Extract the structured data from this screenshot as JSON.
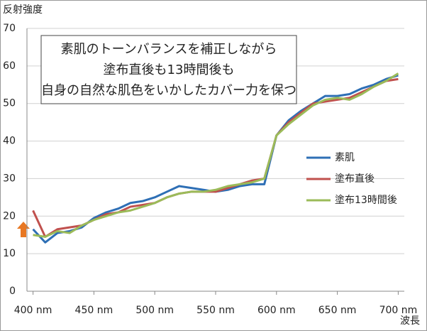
{
  "chart_data": {
    "type": "line",
    "y_axis_label": "反射強度",
    "x_axis_label": "波長",
    "annotation": [
      "素肌のトーンバランスを補正しながら",
      "塗布直後も13時間後も",
      "自身の自然な肌色をいかしたカバー力を保つ"
    ],
    "x": [
      400,
      410,
      420,
      430,
      440,
      450,
      460,
      470,
      480,
      490,
      500,
      510,
      520,
      530,
      540,
      550,
      560,
      570,
      580,
      590,
      600,
      610,
      620,
      630,
      640,
      650,
      660,
      670,
      680,
      690,
      700
    ],
    "series": [
      {
        "name": "素肌",
        "color": "#2e6fb5",
        "values": [
          16.5,
          13,
          15.5,
          16,
          17,
          19.5,
          21,
          22,
          23.5,
          24,
          25,
          26.5,
          28,
          27.5,
          27,
          26.5,
          27,
          28,
          28.5,
          28.5,
          41.5,
          45.5,
          48,
          50,
          52,
          52,
          52.5,
          54,
          55,
          56.5,
          57.5
        ]
      },
      {
        "name": "塗布直後",
        "color": "#c0504d",
        "values": [
          21.5,
          14.5,
          16.5,
          17,
          17.5,
          19,
          20.5,
          21,
          22.5,
          23,
          23.5,
          25,
          26,
          26.5,
          26.5,
          26.5,
          27.5,
          28.5,
          29.5,
          30,
          41.5,
          45,
          47.5,
          50,
          50.5,
          51,
          51.5,
          53,
          54.5,
          56,
          56.5
        ]
      },
      {
        "name": "塗布13時間後",
        "color": "#9bbb59",
        "values": [
          15,
          14.5,
          16,
          15.5,
          17.5,
          19,
          20,
          21,
          21.5,
          22.5,
          23.5,
          25,
          26,
          26.5,
          26.5,
          27,
          28,
          28.5,
          29,
          30,
          41.5,
          44.5,
          47,
          49.5,
          51,
          51.5,
          51,
          52.5,
          54.5,
          56,
          58
        ]
      }
    ],
    "xlim": [
      395,
      705
    ],
    "xticks": [
      {
        "value": 400,
        "label": "400 nm"
      },
      {
        "value": 450,
        "label": "450 nm"
      },
      {
        "value": 500,
        "label": "500 nm"
      },
      {
        "value": 550,
        "label": "550 nm"
      },
      {
        "value": 600,
        "label": "600 nm"
      },
      {
        "value": 650,
        "label": "650 nm"
      },
      {
        "value": 700,
        "label": "700 nm"
      }
    ],
    "ylim": [
      0,
      70
    ],
    "yticks": [
      0,
      10,
      20,
      30,
      40,
      50,
      60,
      70
    ],
    "grid": true,
    "legend": "right"
  }
}
